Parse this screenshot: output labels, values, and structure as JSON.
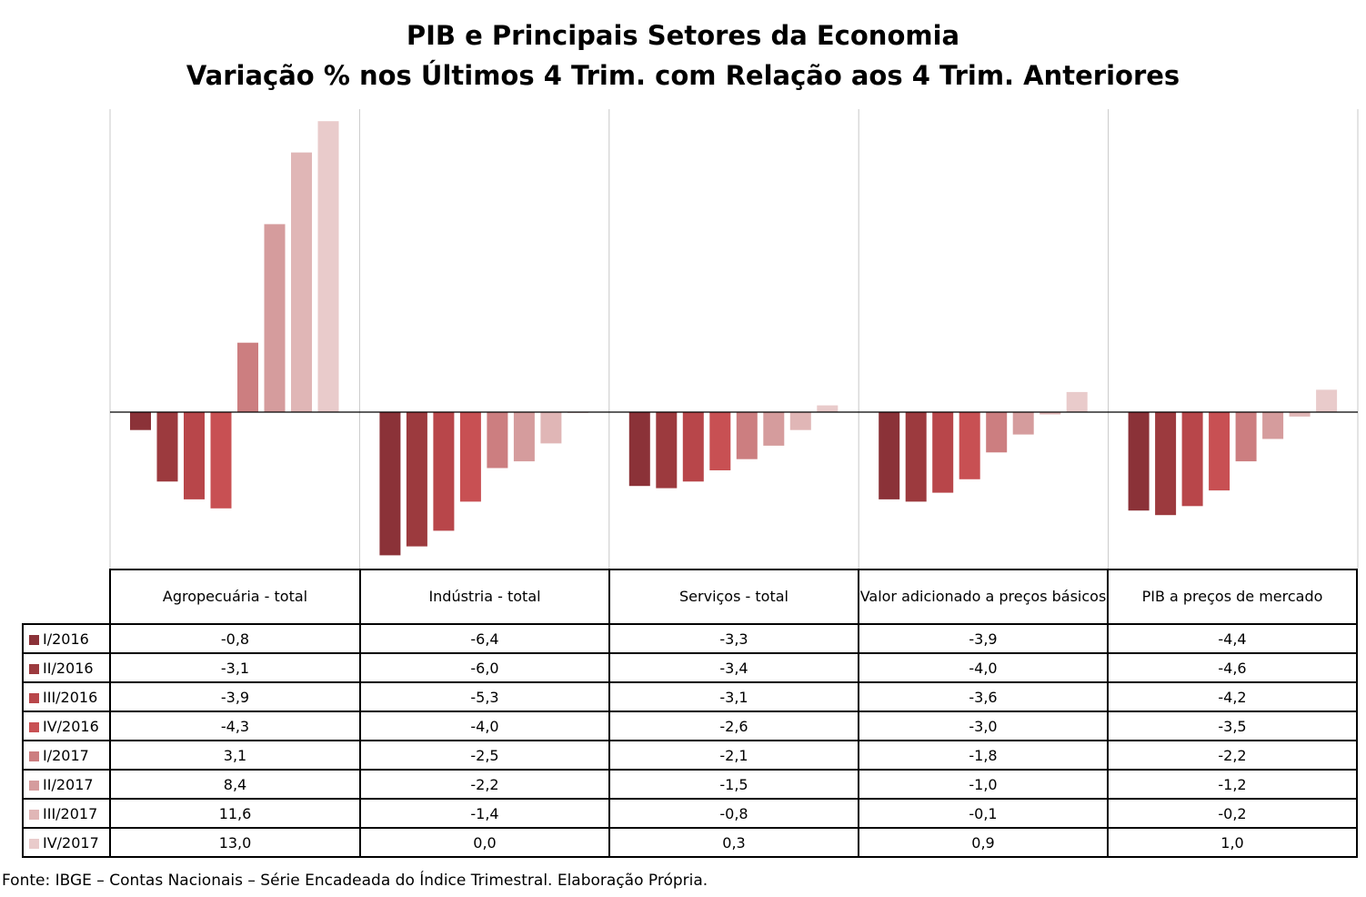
{
  "chart_data": {
    "type": "bar",
    "title": "PIB e Principais Setores da Economia",
    "subtitle": "Variação % nos Últimos 4 Trim. com Relação aos  4 Trim. Anteriores",
    "categories": [
      "Agropecuária - total",
      "Indústria - total",
      "Serviços - total",
      "Valor adicionado a preços básicos",
      "PIB a preços de mercado"
    ],
    "series": [
      {
        "name": "I/2016",
        "color": "#8b3238",
        "values": [
          -0.8,
          -6.4,
          -3.3,
          -3.9,
          -4.4
        ]
      },
      {
        "name": "II/2016",
        "color": "#9c3a3e",
        "values": [
          -3.1,
          -6.0,
          -3.4,
          -4.0,
          -4.6
        ]
      },
      {
        "name": "III/2016",
        "color": "#b8464a",
        "values": [
          -3.9,
          -5.3,
          -3.1,
          -3.6,
          -4.2
        ]
      },
      {
        "name": "IV/2016",
        "color": "#c85053",
        "values": [
          -4.3,
          -4.0,
          -2.6,
          -3.0,
          -3.5
        ]
      },
      {
        "name": "I/2017",
        "color": "#cc7e80",
        "values": [
          3.1,
          -2.5,
          -2.1,
          -1.8,
          -2.2
        ]
      },
      {
        "name": "II/2017",
        "color": "#d59c9d",
        "values": [
          8.4,
          -2.2,
          -1.5,
          -1.0,
          -1.2
        ]
      },
      {
        "name": "III/2017",
        "color": "#e0b6b6",
        "values": [
          11.6,
          -1.4,
          -0.8,
          -0.1,
          -0.2
        ]
      },
      {
        "name": "IV/2017",
        "color": "#e9cbcb",
        "values": [
          13.0,
          0.0,
          0.3,
          0.9,
          1.0
        ]
      }
    ],
    "table": {
      "headers": [
        "Agropecuária - total",
        "Indústria - total",
        "Serviços - total",
        "Valor adicionado a preços básicos",
        "PIB a preços de mercado"
      ],
      "rows": [
        {
          "label": "I/2016",
          "cells": [
            "-0,8",
            "-6,4",
            "-3,3",
            "-3,9",
            "-4,4"
          ]
        },
        {
          "label": "II/2016",
          "cells": [
            "-3,1",
            "-6,0",
            "-3,4",
            "-4,0",
            "-4,6"
          ]
        },
        {
          "label": "III/2016",
          "cells": [
            "-3,9",
            "-5,3",
            "-3,1",
            "-3,6",
            "-4,2"
          ]
        },
        {
          "label": "IV/2016",
          "cells": [
            "-4,3",
            "-4,0",
            "-2,6",
            "-3,0",
            "-3,5"
          ]
        },
        {
          "label": "I/2017",
          "cells": [
            "3,1",
            "-2,5",
            "-2,1",
            "-1,8",
            "-2,2"
          ]
        },
        {
          "label": "II/2017",
          "cells": [
            "8,4",
            "-2,2",
            "-1,5",
            "-1,0",
            "-1,2"
          ]
        },
        {
          "label": "III/2017",
          "cells": [
            "11,6",
            "-1,4",
            "-0,8",
            "-0,1",
            "-0,2"
          ]
        },
        {
          "label": "IV/2017",
          "cells": [
            "13,0",
            "0,0",
            "0,3",
            "0,9",
            "1,0"
          ]
        }
      ]
    },
    "grid": "vertical separators between categories",
    "legend": "embedded in data table rows (left)"
  },
  "source": "Fonte: IBGE – Contas Nacionais – Série Encadeada do Índice Trimestral. Elaboração Própria."
}
